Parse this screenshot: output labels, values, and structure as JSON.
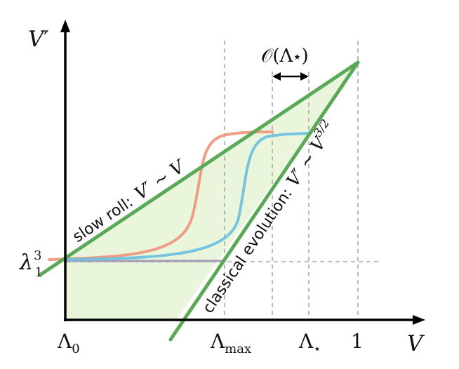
{
  "axes": {
    "y_label": "V′",
    "x_label": "V"
  },
  "ticks": {
    "x": [
      {
        "base": "Λ",
        "sub": "0"
      },
      {
        "base": "Λ",
        "sub": "max"
      },
      {
        "base": "Λ",
        "sub": "⋆"
      },
      {
        "base": "1",
        "sub": ""
      }
    ],
    "y_lambda": {
      "base": "λ",
      "sup": "3",
      "sub": "1"
    }
  },
  "annotations": {
    "order_label": "𝒪(Λ⋆)",
    "slow_roll_prefix": "slow roll:",
    "slow_roll_formula": "V′ ∼ V",
    "classical_prefix": "classical evolution:",
    "classical_formula": "V′ ∼ V",
    "classical_exponent": "3/2"
  },
  "colors": {
    "axis": "#000000",
    "green_line": "#5aa957",
    "green_fill": "#eaf6dc",
    "salmon_curve": "#f0927b",
    "blue_curve": "#69bfdf",
    "purple_segment": "#9a8fae",
    "dashed": "#aaaaaa"
  }
}
